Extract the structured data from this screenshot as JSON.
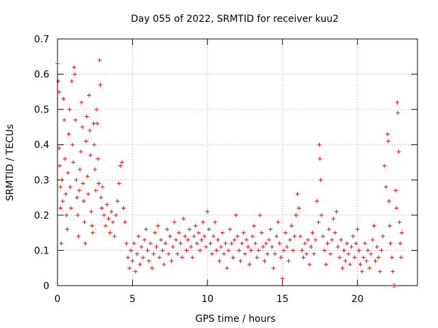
{
  "chart_data": {
    "type": "scatter",
    "title": "Day 055 of 2022, SRMTID for receiver kuu2",
    "xlabel": "GPS time / hours",
    "ylabel": "SRMTID / TECUs",
    "xlim": [
      0,
      24
    ],
    "ylim": [
      0,
      0.7
    ],
    "xticks": [
      0,
      5,
      10,
      15,
      20
    ],
    "xtick_labels": [
      "0",
      "5",
      "10",
      "15",
      "20"
    ],
    "yticks": [
      0,
      0.1,
      0.2,
      0.3,
      0.4,
      0.5,
      0.6,
      0.7
    ],
    "ytick_labels": [
      "0",
      "0.1",
      "0.2",
      "0.3",
      "0.4",
      "0.5",
      "0.6",
      "0.7"
    ],
    "grid": true,
    "marker": "+",
    "series": [
      {
        "name": "SRMTID",
        "color": "#ff0000",
        "points": [
          [
            0.0,
            0.63
          ],
          [
            0.05,
            0.58
          ],
          [
            0.1,
            0.55
          ],
          [
            0.1,
            0.39
          ],
          [
            0.15,
            0.34
          ],
          [
            0.2,
            0.28
          ],
          [
            0.2,
            0.22
          ],
          [
            0.25,
            0.12
          ],
          [
            0.3,
            0.3
          ],
          [
            0.35,
            0.24
          ],
          [
            0.4,
            0.53
          ],
          [
            0.45,
            0.47
          ],
          [
            0.5,
            0.36
          ],
          [
            0.55,
            0.26
          ],
          [
            0.6,
            0.2
          ],
          [
            0.65,
            0.16
          ],
          [
            0.7,
            0.32
          ],
          [
            0.75,
            0.43
          ],
          [
            0.8,
            0.5
          ],
          [
            0.85,
            0.28
          ],
          [
            0.9,
            0.22
          ],
          [
            0.95,
            0.58
          ],
          [
            1.0,
            0.4
          ],
          [
            1.05,
            0.35
          ],
          [
            1.1,
            0.62
          ],
          [
            1.15,
            0.6
          ],
          [
            1.2,
            0.47
          ],
          [
            1.25,
            0.3
          ],
          [
            1.3,
            0.25
          ],
          [
            1.35,
            0.2
          ],
          [
            1.4,
            0.14
          ],
          [
            1.45,
            0.27
          ],
          [
            1.5,
            0.33
          ],
          [
            1.55,
            0.38
          ],
          [
            1.6,
            0.52
          ],
          [
            1.65,
            0.45
          ],
          [
            1.7,
            0.29
          ],
          [
            1.75,
            0.24
          ],
          [
            1.8,
            0.18
          ],
          [
            1.85,
            0.12
          ],
          [
            1.9,
            0.41
          ],
          [
            1.95,
            0.48
          ],
          [
            2.0,
            0.31
          ],
          [
            2.05,
            0.26
          ],
          [
            2.1,
            0.54
          ],
          [
            2.15,
            0.44
          ],
          [
            2.2,
            0.37
          ],
          [
            2.25,
            0.21
          ],
          [
            2.3,
            0.17
          ],
          [
            2.35,
            0.15
          ],
          [
            2.4,
            0.46
          ],
          [
            2.45,
            0.4
          ],
          [
            2.5,
            0.33
          ],
          [
            2.55,
            0.27
          ],
          [
            2.6,
            0.5
          ],
          [
            2.65,
            0.46
          ],
          [
            2.7,
            0.36
          ],
          [
            2.75,
            0.29
          ],
          [
            2.8,
            0.64
          ],
          [
            2.85,
            0.57
          ],
          [
            2.9,
            0.25
          ],
          [
            2.95,
            0.22
          ],
          [
            3.0,
            0.28
          ],
          [
            3.1,
            0.2
          ],
          [
            3.2,
            0.17
          ],
          [
            3.3,
            0.23
          ],
          [
            3.4,
            0.19
          ],
          [
            3.5,
            0.15
          ],
          [
            3.6,
            0.21
          ],
          [
            3.7,
            0.18
          ],
          [
            3.8,
            0.14
          ],
          [
            3.9,
            0.2
          ],
          [
            4.0,
            0.24
          ],
          [
            4.1,
            0.29
          ],
          [
            4.2,
            0.34
          ],
          [
            4.3,
            0.35
          ],
          [
            4.4,
            0.22
          ],
          [
            4.5,
            0.18
          ],
          [
            4.6,
            0.12
          ],
          [
            4.7,
            0.08
          ],
          [
            4.8,
            0.05
          ],
          [
            4.9,
            0.1
          ],
          [
            5.0,
            0.07
          ],
          [
            5.1,
            0.12
          ],
          [
            5.2,
            0.04
          ],
          [
            5.3,
            0.09
          ],
          [
            5.4,
            0.14
          ],
          [
            5.5,
            0.06
          ],
          [
            5.6,
            0.11
          ],
          [
            5.7,
            0.08
          ],
          [
            5.8,
            0.13
          ],
          [
            5.9,
            0.16
          ],
          [
            6.0,
            0.1
          ],
          [
            6.1,
            0.07
          ],
          [
            6.2,
            0.12
          ],
          [
            6.3,
            0.05
          ],
          [
            6.4,
            0.09
          ],
          [
            6.5,
            0.15
          ],
          [
            6.6,
            0.11
          ],
          [
            6.7,
            0.17
          ],
          [
            6.8,
            0.08
          ],
          [
            6.9,
            0.13
          ],
          [
            7.0,
            0.1
          ],
          [
            7.1,
            0.06
          ],
          [
            7.2,
            0.12
          ],
          [
            7.3,
            0.16
          ],
          [
            7.4,
            0.09
          ],
          [
            7.5,
            0.14
          ],
          [
            7.6,
            0.07
          ],
          [
            7.7,
            0.11
          ],
          [
            7.8,
            0.18
          ],
          [
            7.9,
            0.13
          ],
          [
            8.0,
            0.09
          ],
          [
            8.1,
            0.15
          ],
          [
            8.2,
            0.12
          ],
          [
            8.3,
            0.08
          ],
          [
            8.4,
            0.19
          ],
          [
            8.5,
            0.14
          ],
          [
            8.6,
            0.1
          ],
          [
            8.7,
            0.13
          ],
          [
            8.8,
            0.16
          ],
          [
            8.9,
            0.11
          ],
          [
            9.0,
            0.08
          ],
          [
            9.1,
            0.14
          ],
          [
            9.2,
            0.17
          ],
          [
            9.3,
            0.12
          ],
          [
            9.4,
            0.15
          ],
          [
            9.5,
            0.1
          ],
          [
            9.6,
            0.13
          ],
          [
            9.7,
            0.18
          ],
          [
            9.8,
            0.14
          ],
          [
            9.9,
            0.11
          ],
          [
            10.0,
            0.21
          ],
          [
            10.1,
            0.16
          ],
          [
            10.2,
            0.12
          ],
          [
            10.3,
            0.09
          ],
          [
            10.4,
            0.14
          ],
          [
            10.5,
            0.18
          ],
          [
            10.6,
            0.1
          ],
          [
            10.7,
            0.13
          ],
          [
            10.8,
            0.07
          ],
          [
            10.9,
            0.11
          ],
          [
            11.0,
            0.15
          ],
          [
            11.1,
            0.09
          ],
          [
            11.2,
            0.12
          ],
          [
            11.3,
            0.05
          ],
          [
            11.4,
            0.1
          ],
          [
            11.5,
            0.16
          ],
          [
            11.6,
            0.12
          ],
          [
            11.7,
            0.08
          ],
          [
            11.8,
            0.13
          ],
          [
            11.9,
            0.2
          ],
          [
            12.0,
            0.14
          ],
          [
            12.1,
            0.1
          ],
          [
            12.2,
            0.07
          ],
          [
            12.3,
            0.12
          ],
          [
            12.4,
            0.15
          ],
          [
            12.5,
            0.09
          ],
          [
            12.6,
            0.13
          ],
          [
            12.7,
            0.11
          ],
          [
            12.8,
            0.06
          ],
          [
            12.9,
            0.1
          ],
          [
            13.0,
            0.14
          ],
          [
            13.1,
            0.17
          ],
          [
            13.2,
            0.12
          ],
          [
            13.3,
            0.08
          ],
          [
            13.4,
            0.1
          ],
          [
            13.5,
            0.2
          ],
          [
            13.6,
            0.15
          ],
          [
            13.7,
            0.11
          ],
          [
            13.8,
            0.07
          ],
          [
            13.9,
            0.12
          ],
          [
            14.0,
            0.09
          ],
          [
            14.1,
            0.13
          ],
          [
            14.2,
            0.16
          ],
          [
            14.3,
            0.11
          ],
          [
            14.4,
            0.05
          ],
          [
            14.5,
            0.09
          ],
          [
            14.6,
            0.14
          ],
          [
            14.7,
            0.18
          ],
          [
            14.8,
            0.12
          ],
          [
            14.9,
            0.08
          ],
          [
            15.0,
            0.02
          ],
          [
            15.1,
            0.1
          ],
          [
            15.2,
            0.15
          ],
          [
            15.3,
            0.11
          ],
          [
            15.4,
            0.07
          ],
          [
            15.5,
            0.13
          ],
          [
            15.6,
            0.17
          ],
          [
            15.7,
            0.1
          ],
          [
            15.8,
            0.14
          ],
          [
            15.9,
            0.2
          ],
          [
            16.0,
            0.26
          ],
          [
            16.1,
            0.22
          ],
          [
            16.2,
            0.14
          ],
          [
            16.3,
            0.1
          ],
          [
            16.4,
            0.08
          ],
          [
            16.5,
            0.12
          ],
          [
            16.6,
            0.09
          ],
          [
            16.7,
            0.13
          ],
          [
            16.8,
            0.06
          ],
          [
            16.9,
            0.11
          ],
          [
            17.0,
            0.15
          ],
          [
            17.1,
            0.09
          ],
          [
            17.2,
            0.13
          ],
          [
            17.3,
            0.24
          ],
          [
            17.4,
            0.18
          ],
          [
            17.45,
            0.4
          ],
          [
            17.5,
            0.36
          ],
          [
            17.55,
            0.3
          ],
          [
            17.6,
            0.2
          ],
          [
            17.7,
            0.14
          ],
          [
            17.8,
            0.1
          ],
          [
            17.9,
            0.06
          ],
          [
            18.0,
            0.12
          ],
          [
            18.1,
            0.16
          ],
          [
            18.2,
            0.09
          ],
          [
            18.3,
            0.13
          ],
          [
            18.4,
            0.19
          ],
          [
            18.5,
            0.15
          ],
          [
            18.6,
            0.21
          ],
          [
            18.7,
            0.11
          ],
          [
            18.8,
            0.08
          ],
          [
            18.9,
            0.13
          ],
          [
            19.0,
            0.05
          ],
          [
            19.1,
            0.1
          ],
          [
            19.2,
            0.07
          ],
          [
            19.3,
            0.12
          ],
          [
            19.4,
            0.09
          ],
          [
            19.5,
            0.06
          ],
          [
            19.6,
            0.11
          ],
          [
            19.7,
            0.14
          ],
          [
            19.8,
            0.08
          ],
          [
            19.9,
            0.12
          ],
          [
            20.0,
            0.16
          ],
          [
            20.1,
            0.1
          ],
          [
            20.2,
            0.06
          ],
          [
            20.3,
            0.04
          ],
          [
            20.4,
            0.08
          ],
          [
            20.5,
            0.12
          ],
          [
            20.6,
            0.07
          ],
          [
            20.7,
            0.1
          ],
          [
            20.8,
            0.05
          ],
          [
            20.9,
            0.09
          ],
          [
            21.0,
            0.13
          ],
          [
            21.1,
            0.17
          ],
          [
            21.2,
            0.07
          ],
          [
            21.3,
            0.11
          ],
          [
            21.4,
            0.08
          ],
          [
            21.5,
            0.04
          ],
          [
            21.6,
            0.1
          ],
          [
            21.7,
            0.14
          ],
          [
            21.8,
            0.34
          ],
          [
            21.9,
            0.28
          ],
          [
            22.0,
            0.43
          ],
          [
            22.05,
            0.41
          ],
          [
            22.1,
            0.24
          ],
          [
            22.15,
            0.17
          ],
          [
            22.2,
            0.12
          ],
          [
            22.3,
            0.08
          ],
          [
            22.35,
            0.04
          ],
          [
            22.4,
            0.0
          ],
          [
            22.5,
            0.0
          ],
          [
            22.55,
            0.27
          ],
          [
            22.6,
            0.22
          ],
          [
            22.65,
            0.52
          ],
          [
            22.7,
            0.49
          ],
          [
            22.75,
            0.38
          ],
          [
            22.8,
            0.18
          ],
          [
            22.85,
            0.12
          ],
          [
            22.9,
            0.08
          ],
          [
            22.95,
            0.15
          ]
        ]
      }
    ]
  }
}
